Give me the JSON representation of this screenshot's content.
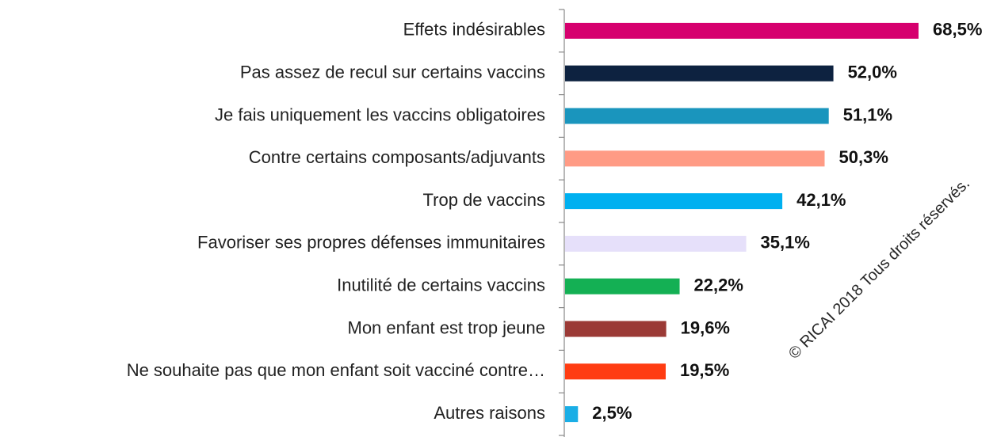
{
  "chart_data": {
    "type": "bar",
    "orientation": "horizontal",
    "categories": [
      "Effets indésirables",
      "Pas assez de recul sur certains vaccins",
      "Je fais uniquement les vaccins obligatoires",
      "Contre certains composants/adjuvants",
      "Trop de vaccins",
      "Favoriser ses propres défenses immunitaires",
      "Inutilité de certains vaccins",
      "Mon enfant est trop jeune",
      "Ne souhaite pas que mon enfant soit vacciné contre…",
      "Autres raisons"
    ],
    "values": [
      68.5,
      52.0,
      51.1,
      50.3,
      42.1,
      35.1,
      22.2,
      19.6,
      19.5,
      2.5
    ],
    "value_labels": [
      "68,5%",
      "52,0%",
      "51,1%",
      "50,3%",
      "42,1%",
      "35,1%",
      "22,2%",
      "19,6%",
      "19,5%",
      "2,5%"
    ],
    "colors": [
      "#d6006e",
      "#0d2240",
      "#1a95bd",
      "#ff9b85",
      "#00b0f0",
      "#e6e0fa",
      "#14b054",
      "#9b3a36",
      "#ff3c12",
      "#1aaee6"
    ],
    "watermark": "© RICAI 2018 Tous droits réservés."
  }
}
